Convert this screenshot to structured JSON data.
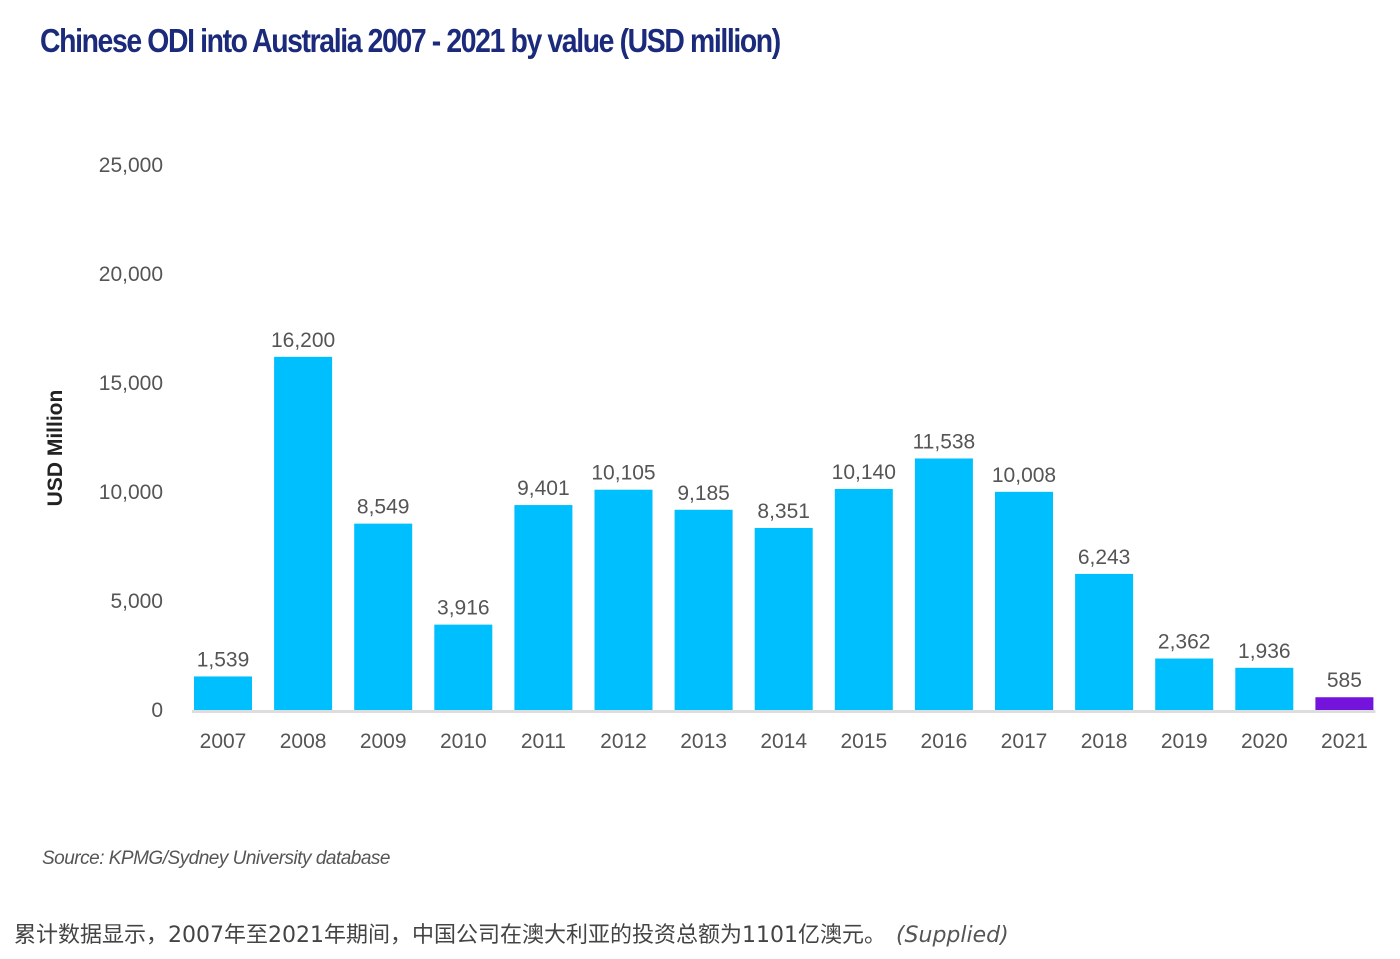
{
  "chart_data": {
    "type": "bar",
    "title": "Chinese ODI into Australia 2007 - 2021 by value (USD million)",
    "xlabel": "",
    "ylabel": "USD Million",
    "ylim": [
      0,
      25000
    ],
    "yticks": [
      0,
      5000,
      10000,
      15000,
      20000,
      25000
    ],
    "ytick_labels": [
      "0",
      "5,000",
      "10,000",
      "15,000",
      "20,000",
      "25,000"
    ],
    "grid": false,
    "categories": [
      "2007",
      "2008",
      "2009",
      "2010",
      "2011",
      "2012",
      "2013",
      "2014",
      "2015",
      "2016",
      "2017",
      "2018",
      "2019",
      "2020",
      "2021"
    ],
    "values": [
      1539,
      16200,
      8549,
      3916,
      9401,
      10105,
      9185,
      8351,
      10140,
      11538,
      10008,
      6243,
      2362,
      1936,
      585
    ],
    "value_labels": [
      "1,539",
      "16,200",
      "8,549",
      "3,916",
      "9,401",
      "10,105",
      "9,185",
      "8,351",
      "10,140",
      "11,538",
      "10,008",
      "6,243",
      "2,362",
      "1,936",
      "585"
    ],
    "colors": {
      "default": "#00bfff",
      "highlight": "#7413dc",
      "highlight_category": "2021",
      "axis": "#dddddd",
      "title": "#1b2a7a"
    }
  },
  "source": "Source: KPMG/Sydney University database",
  "caption": {
    "text": "累计数据显示，2007年至2021年期间，中国公司在澳大利亚的投资总额为1101亿澳元。",
    "credit": "(Supplied)"
  }
}
